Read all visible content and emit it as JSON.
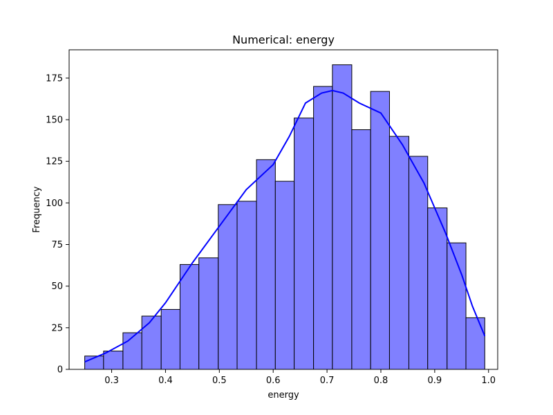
{
  "chart_data": {
    "type": "bar",
    "subtype": "histogram-with-kde",
    "title": "Numerical: energy",
    "xlabel": "energy",
    "ylabel": "Frequency",
    "xlim": [
      0.221,
      1.017
    ],
    "ylim": [
      0,
      192
    ],
    "xticks": [
      "0.3",
      "0.4",
      "0.5",
      "0.6",
      "0.7",
      "0.8",
      "0.9",
      "1.0"
    ],
    "yticks": [
      "0",
      "25",
      "50",
      "75",
      "100",
      "125",
      "150",
      "175"
    ],
    "grid": false,
    "legend": "none",
    "bar_fill": "#8080ff",
    "bar_edge": "#000000",
    "kde_color": "#0000ff",
    "bins": [
      {
        "x0": 0.25,
        "x1": 0.285,
        "count": 8
      },
      {
        "x0": 0.285,
        "x1": 0.321,
        "count": 11
      },
      {
        "x0": 0.321,
        "x1": 0.356,
        "count": 22
      },
      {
        "x0": 0.356,
        "x1": 0.392,
        "count": 32
      },
      {
        "x0": 0.392,
        "x1": 0.427,
        "count": 36
      },
      {
        "x0": 0.427,
        "x1": 0.462,
        "count": 63
      },
      {
        "x0": 0.462,
        "x1": 0.498,
        "count": 67
      },
      {
        "x0": 0.498,
        "x1": 0.533,
        "count": 99
      },
      {
        "x0": 0.533,
        "x1": 0.569,
        "count": 101
      },
      {
        "x0": 0.569,
        "x1": 0.604,
        "count": 126
      },
      {
        "x0": 0.604,
        "x1": 0.639,
        "count": 113
      },
      {
        "x0": 0.639,
        "x1": 0.675,
        "count": 151
      },
      {
        "x0": 0.675,
        "x1": 0.71,
        "count": 170
      },
      {
        "x0": 0.71,
        "x1": 0.746,
        "count": 183
      },
      {
        "x0": 0.746,
        "x1": 0.781,
        "count": 144
      },
      {
        "x0": 0.781,
        "x1": 0.816,
        "count": 167
      },
      {
        "x0": 0.816,
        "x1": 0.852,
        "count": 140
      },
      {
        "x0": 0.852,
        "x1": 0.887,
        "count": 128
      },
      {
        "x0": 0.887,
        "x1": 0.923,
        "count": 97
      },
      {
        "x0": 0.923,
        "x1": 0.958,
        "count": 76
      },
      {
        "x0": 0.958,
        "x1": 0.993,
        "count": 31
      }
    ],
    "kde": {
      "x": [
        0.25,
        0.29,
        0.33,
        0.37,
        0.4,
        0.45,
        0.5,
        0.55,
        0.6,
        0.63,
        0.66,
        0.69,
        0.71,
        0.73,
        0.76,
        0.8,
        0.84,
        0.88,
        0.92,
        0.95,
        0.97,
        0.993
      ],
      "y": [
        4.5,
        10,
        17,
        28,
        40,
        64,
        86,
        108,
        123,
        140,
        160,
        166,
        167.5,
        166,
        160,
        154,
        135,
        112,
        82,
        57,
        38,
        20
      ]
    }
  }
}
